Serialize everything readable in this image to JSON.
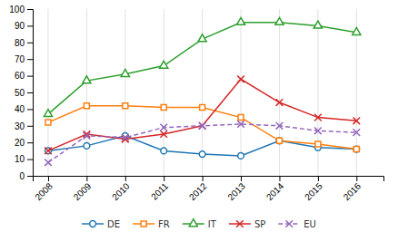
{
  "chart_data": {
    "type": "line",
    "x": [
      2008,
      2009,
      2010,
      2011,
      2012,
      2013,
      2014,
      2015,
      2016
    ],
    "series": [
      {
        "name": "DE",
        "values": [
          15,
          18,
          24,
          15,
          13,
          12,
          21,
          17,
          16
        ],
        "marker": "circle",
        "line_style": "solid"
      },
      {
        "name": "FR",
        "values": [
          32,
          42,
          42,
          41,
          41,
          35,
          21,
          19,
          16
        ],
        "marker": "square",
        "line_style": "solid"
      },
      {
        "name": "IT",
        "values": [
          37,
          57,
          61,
          66,
          82,
          92,
          92,
          90,
          86
        ],
        "marker": "triangle",
        "line_style": "solid"
      },
      {
        "name": "SP",
        "values": [
          15,
          25,
          22,
          25,
          30,
          58,
          44,
          35,
          33
        ],
        "marker": "x",
        "line_style": "solid"
      },
      {
        "name": "EU",
        "values": [
          8,
          24,
          23,
          29,
          30,
          31,
          30,
          27,
          26
        ],
        "marker": "x",
        "line_style": "dashed"
      }
    ],
    "xlim": [
      2007.6,
      2016.7
    ],
    "xticks": [
      2008,
      2009,
      2010,
      2011,
      2012,
      2013,
      2014,
      2015,
      2016
    ],
    "ylim": [
      0,
      100
    ],
    "yticks": [
      0,
      10,
      20,
      30,
      40,
      50,
      60,
      70,
      80,
      90,
      100
    ],
    "grid": "x",
    "legend": "bottom"
  }
}
